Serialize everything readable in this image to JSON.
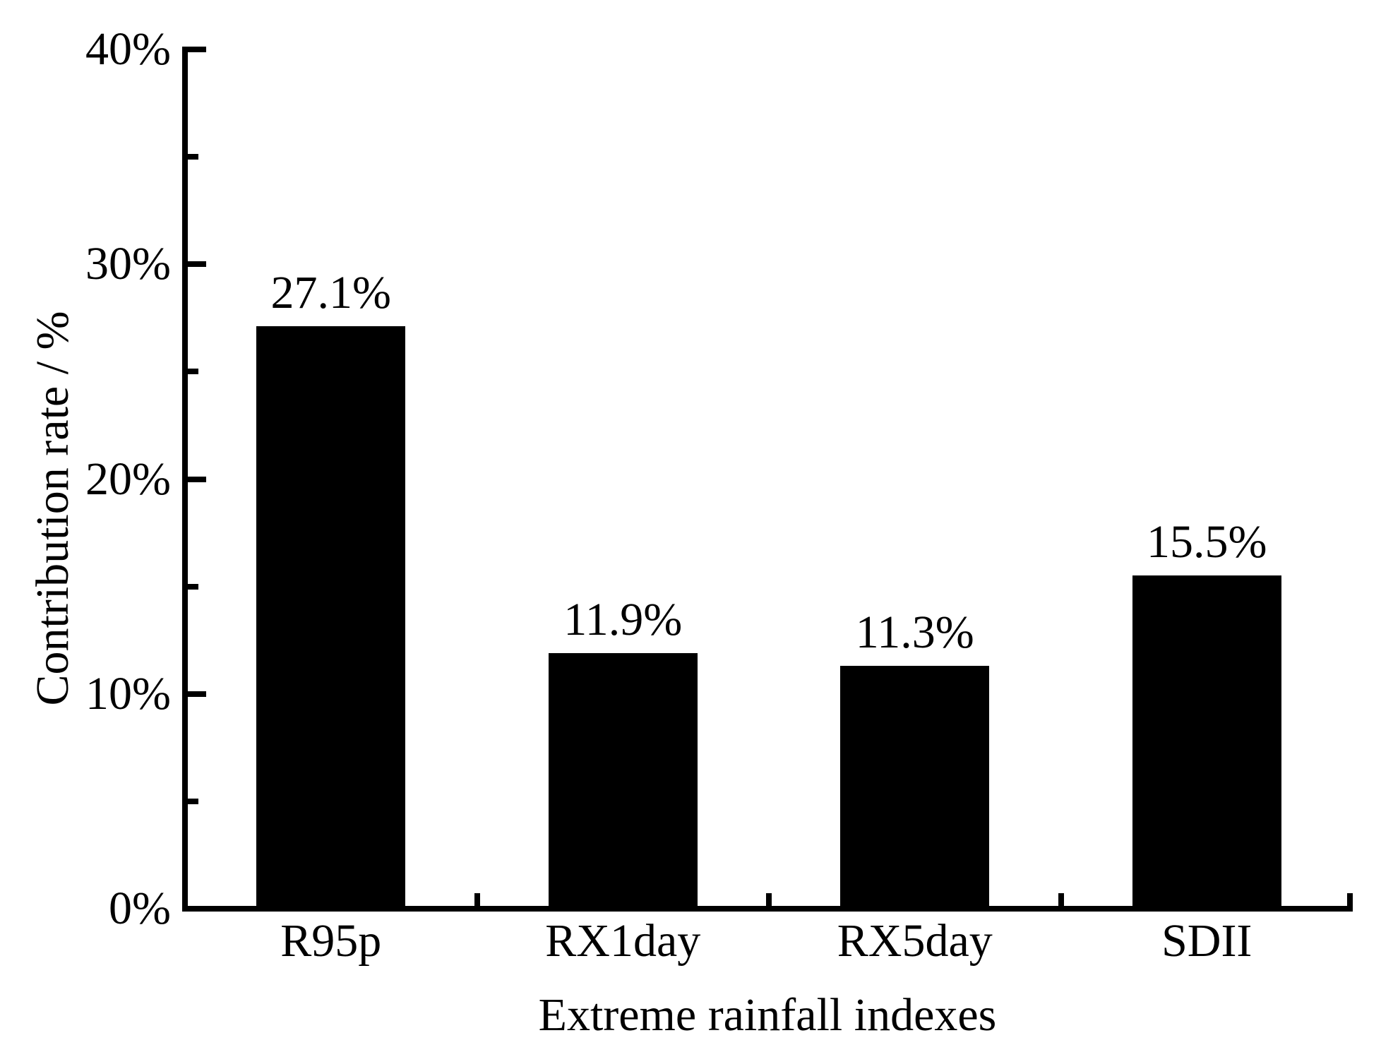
{
  "chart_data": {
    "type": "bar",
    "title": "",
    "categories": [
      "R95p",
      "RX1day",
      "RX5day",
      "SDII"
    ],
    "values": [
      27.1,
      11.9,
      11.3,
      15.5
    ],
    "value_labels": [
      "27.1%",
      "11.9%",
      "11.3%",
      "15.5%"
    ],
    "xlabel": "Extreme rainfall indexes",
    "ylabel": "Contribution rate / %",
    "ylim": [
      0,
      40
    ],
    "ytick_major": [
      0,
      10,
      20,
      30,
      40
    ],
    "ytick_major_labels": [
      "0%",
      "10%",
      "20%",
      "30%",
      "40%"
    ],
    "ytick_minor": [
      5,
      15,
      25,
      35
    ],
    "grid": "off",
    "legend": "none",
    "bar_color": "#000000",
    "axis_color": "#000000",
    "background_color": "#ffffff"
  }
}
